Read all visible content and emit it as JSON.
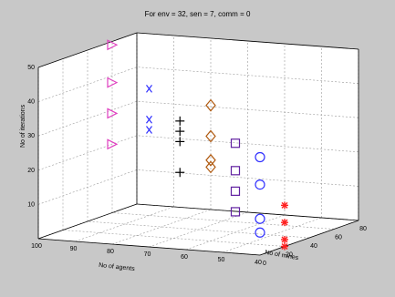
{
  "chart_data": {
    "type": "scatter",
    "title": "For env = 32, sen = 7, comm = 0",
    "xlabel": "No of mines",
    "ylabel": "No of agents",
    "zlabel": "No of iterations",
    "xlim": [
      0,
      80
    ],
    "ylim": [
      40,
      100
    ],
    "zlim": [
      0,
      50
    ],
    "xticks": [
      "0",
      "20",
      "40",
      "60",
      "80"
    ],
    "yticks": [
      "40",
      "50",
      "60",
      "70",
      "80",
      "90",
      "100"
    ],
    "zticks": [
      "10",
      "20",
      "30",
      "40",
      "50"
    ],
    "grid": true,
    "series": [
      {
        "marker": "triangle-right",
        "color": "#e040c0",
        "points": [
          [
            60,
            100,
            49
          ],
          [
            60,
            100,
            38
          ],
          [
            60,
            100,
            29
          ],
          [
            60,
            100,
            20
          ]
        ]
      },
      {
        "marker": "x",
        "color": "#3030ff",
        "points": [
          [
            60,
            90,
            37
          ],
          [
            60,
            90,
            28
          ],
          [
            60,
            90,
            25
          ]
        ]
      },
      {
        "marker": "plus",
        "color": "#000000",
        "points": [
          [
            55,
            80,
            29
          ],
          [
            55,
            80,
            26
          ],
          [
            55,
            80,
            23
          ],
          [
            55,
            80,
            14
          ]
        ]
      },
      {
        "marker": "diamond",
        "color": "#b05a10",
        "points": [
          [
            50,
            70,
            35
          ],
          [
            50,
            70,
            26
          ],
          [
            50,
            70,
            19
          ],
          [
            50,
            70,
            17
          ]
        ]
      },
      {
        "marker": "square",
        "color": "#6020a0",
        "points": [
          [
            40,
            60,
            26
          ],
          [
            40,
            60,
            18
          ],
          [
            40,
            60,
            12
          ],
          [
            40,
            60,
            6
          ]
        ]
      },
      {
        "marker": "circle",
        "color": "#3030ff",
        "points": [
          [
            30,
            50,
            24
          ],
          [
            30,
            50,
            16
          ],
          [
            30,
            50,
            6
          ],
          [
            30,
            50,
            2
          ]
        ]
      },
      {
        "marker": "asterisk",
        "color": "#ff2020",
        "points": [
          [
            20,
            40,
            12
          ],
          [
            20,
            40,
            7
          ],
          [
            20,
            40,
            2
          ],
          [
            20,
            40,
            0
          ]
        ]
      }
    ]
  }
}
